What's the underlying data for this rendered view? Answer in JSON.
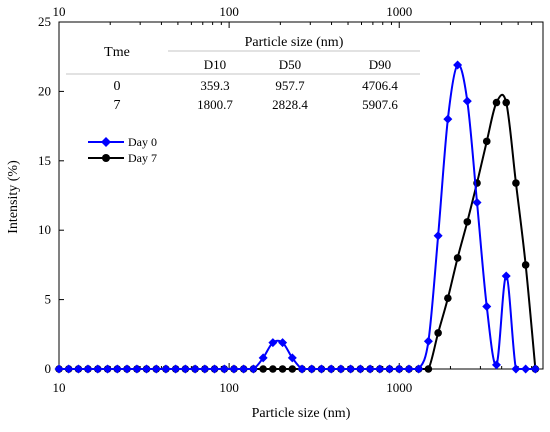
{
  "chart_data": {
    "type": "scatter",
    "xlabel": "Particle size (nm)",
    "ylabel": "Intensity (%)",
    "xscale": "log",
    "xlim": [
      10,
      7000
    ],
    "ylim": [
      0,
      25
    ],
    "x_ticks": [
      "10",
      "100",
      "1000"
    ],
    "y_ticks": [
      "0",
      "5",
      "10",
      "15",
      "20",
      "25"
    ],
    "grid": false,
    "legend_position": "left",
    "series": [
      {
        "name": "Day 0",
        "color": "#0000ff",
        "marker": "diamond",
        "x": [
          10,
          11.4,
          13.0,
          14.8,
          16.9,
          19.3,
          22.0,
          25.1,
          28.7,
          32.7,
          37.3,
          42.5,
          48.5,
          55.3,
          63.1,
          72.0,
          82.1,
          93.7,
          106.8,
          121.8,
          138.9,
          158.5,
          180.8,
          206.2,
          235.2,
          268.3,
          306.0,
          349.0,
          398.1,
          454.1,
          518.0,
          590.9,
          674.0,
          768.8,
          877.0,
          1000.0,
          1140.7,
          1301.2,
          1484.2,
          1693.0,
          1931.2,
          2202.9,
          2512.8,
          2866.3,
          3269.5,
          3729.5,
          4254.2,
          4852.7,
          5535.4,
          6314.1
        ],
        "y": [
          0,
          0,
          0,
          0,
          0,
          0,
          0,
          0,
          0,
          0,
          0,
          0,
          0,
          0,
          0,
          0,
          0,
          0,
          0,
          0,
          0,
          0.8,
          1.9,
          1.9,
          0.8,
          0,
          0,
          0,
          0,
          0,
          0,
          0,
          0,
          0,
          0,
          0,
          0,
          0,
          2.0,
          9.6,
          18.0,
          21.9,
          19.3,
          12.0,
          4.5,
          0.3,
          6.7,
          0,
          0,
          0
        ]
      },
      {
        "name": "Day 7",
        "color": "#000000",
        "marker": "circle",
        "x": [
          10,
          11.4,
          13.0,
          14.8,
          16.9,
          19.3,
          22.0,
          25.1,
          28.7,
          32.7,
          37.3,
          42.5,
          48.5,
          55.3,
          63.1,
          72.0,
          82.1,
          93.7,
          106.8,
          121.8,
          138.9,
          158.5,
          180.8,
          206.2,
          235.2,
          268.3,
          306.0,
          349.0,
          398.1,
          454.1,
          518.0,
          590.9,
          674.0,
          768.8,
          877.0,
          1000.0,
          1140.7,
          1301.2,
          1484.2,
          1693.0,
          1931.2,
          2202.9,
          2512.8,
          2866.3,
          3269.5,
          3729.5,
          4254.2,
          4852.7,
          5535.4,
          6314.1
        ],
        "y": [
          0,
          0,
          0,
          0,
          0,
          0,
          0,
          0,
          0,
          0,
          0,
          0,
          0,
          0,
          0,
          0,
          0,
          0,
          0,
          0,
          0,
          0,
          0,
          0,
          0,
          0,
          0,
          0,
          0,
          0,
          0,
          0,
          0,
          0,
          0,
          0,
          0,
          0,
          0,
          2.6,
          5.1,
          8.0,
          10.6,
          13.4,
          16.4,
          19.2,
          19.2,
          13.4,
          7.5,
          0
        ]
      }
    ],
    "table": {
      "row_header": "Tme",
      "group_header": "Particle size (nm)",
      "columns": [
        "D10",
        "D50",
        "D90"
      ],
      "rows": [
        {
          "label": "0",
          "values": [
            "359.3",
            "957.7",
            "4706.4"
          ]
        },
        {
          "label": "7",
          "values": [
            "1800.7",
            "2828.4",
            "5907.6"
          ]
        }
      ]
    }
  }
}
